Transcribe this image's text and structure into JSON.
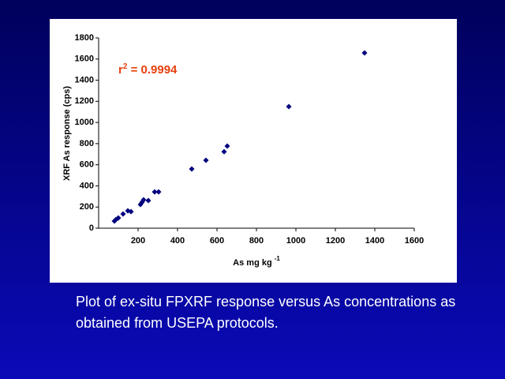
{
  "chart_data": {
    "type": "scatter",
    "annotation": {
      "base": "r",
      "superscript": "2",
      "text": " = 0.9994"
    },
    "x_label": {
      "base": "As mg kg",
      "superscript": "-1"
    },
    "y_label": "XRF As response (cps)",
    "color": "#00007f",
    "x": [
      80,
      88,
      100,
      124,
      148,
      164,
      212,
      220,
      228,
      252,
      284,
      304,
      472,
      544,
      636,
      652,
      964,
      1348
    ],
    "values": [
      67,
      82,
      97,
      134,
      164,
      157,
      224,
      246,
      269,
      261,
      344,
      344,
      560,
      642,
      724,
      777,
      1150,
      1658
    ],
    "xlim": [
      0,
      1600
    ],
    "xticks": [
      200,
      400,
      600,
      800,
      1000,
      1200,
      1400,
      1600
    ],
    "ylim": [
      0,
      1800
    ],
    "yticks": [
      0,
      200,
      400,
      600,
      800,
      1000,
      1200,
      1400,
      1600,
      1800
    ],
    "grid": false
  },
  "caption": "Plot of ex-situ FPXRF response versus As concentrations as obtained from USEPA protocols."
}
